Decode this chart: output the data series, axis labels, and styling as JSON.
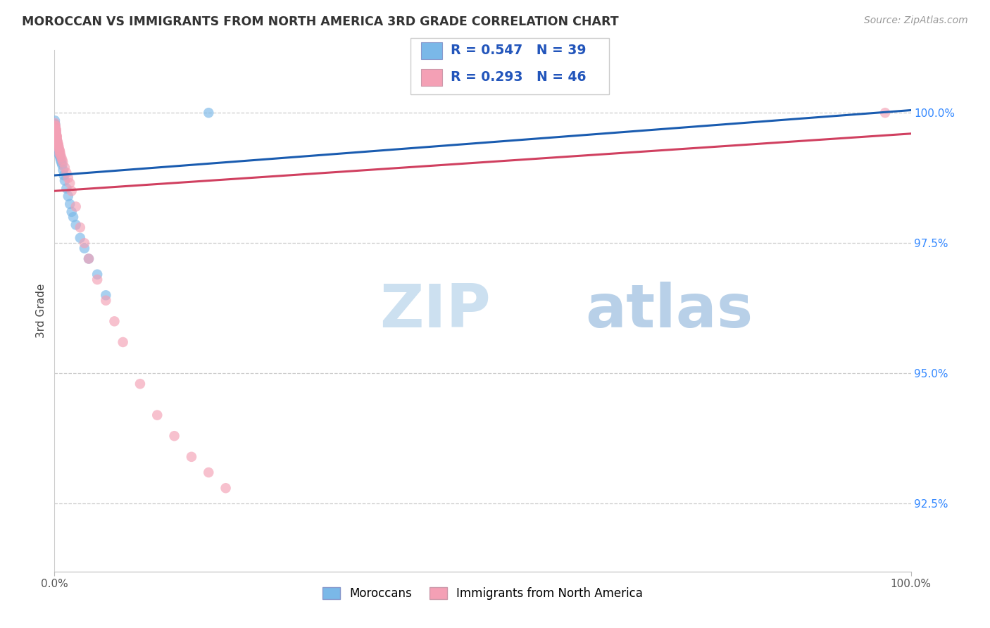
{
  "title": "MOROCCAN VS IMMIGRANTS FROM NORTH AMERICA 3RD GRADE CORRELATION CHART",
  "source": "Source: ZipAtlas.com",
  "ylabel": "3rd Grade",
  "yaxis_values": [
    100.0,
    97.5,
    95.0,
    92.5
  ],
  "xmin": 0.0,
  "xmax": 100.0,
  "ymin": 91.2,
  "ymax": 101.2,
  "legend1_label": "Moroccans",
  "legend2_label": "Immigrants from North America",
  "R1": 0.547,
  "N1": 39,
  "R2": 0.293,
  "N2": 46,
  "color_blue": "#7ab8e8",
  "color_pink": "#f4a0b5",
  "color_blue_line": "#1a5cb0",
  "color_pink_line": "#d04060",
  "color_title": "#333333",
  "color_stat": "#2255bb",
  "color_yaxis": "#3388ff",
  "watermark_zip": "#cce0f0",
  "watermark_atlas": "#b8d0e8",
  "blue_x": [
    0.05,
    0.08,
    0.1,
    0.12,
    0.15,
    0.18,
    0.2,
    0.22,
    0.25,
    0.28,
    0.3,
    0.32,
    0.35,
    0.38,
    0.4,
    0.42,
    0.45,
    0.5,
    0.55,
    0.6,
    0.65,
    0.7,
    0.8,
    0.9,
    1.0,
    1.1,
    1.2,
    1.4,
    1.6,
    1.8,
    2.0,
    2.2,
    2.5,
    3.0,
    3.5,
    4.0,
    5.0,
    6.0,
    18.0
  ],
  "blue_y": [
    99.85,
    99.78,
    99.72,
    99.68,
    99.65,
    99.6,
    99.55,
    99.5,
    99.48,
    99.45,
    99.42,
    99.4,
    99.38,
    99.35,
    99.32,
    99.3,
    99.28,
    99.25,
    99.2,
    99.18,
    99.15,
    99.1,
    99.05,
    99.0,
    98.9,
    98.8,
    98.7,
    98.55,
    98.4,
    98.25,
    98.1,
    98.0,
    97.85,
    97.6,
    97.4,
    97.2,
    96.9,
    96.5,
    100.0
  ],
  "pink_x": [
    0.05,
    0.08,
    0.12,
    0.15,
    0.18,
    0.2,
    0.22,
    0.25,
    0.28,
    0.3,
    0.35,
    0.4,
    0.45,
    0.5,
    0.55,
    0.6,
    0.65,
    0.7,
    0.8,
    0.9,
    1.0,
    1.2,
    1.4,
    1.6,
    1.8,
    2.0,
    2.5,
    3.0,
    3.5,
    4.0,
    5.0,
    6.0,
    7.0,
    8.0,
    10.0,
    12.0,
    14.0,
    16.0,
    18.0,
    20.0,
    0.1,
    0.18,
    0.28,
    0.4,
    0.6,
    97.0
  ],
  "pink_y": [
    99.8,
    99.75,
    99.7,
    99.68,
    99.65,
    99.62,
    99.58,
    99.55,
    99.52,
    99.48,
    99.45,
    99.42,
    99.38,
    99.35,
    99.3,
    99.28,
    99.25,
    99.2,
    99.15,
    99.1,
    99.05,
    98.95,
    98.85,
    98.75,
    98.65,
    98.5,
    98.2,
    97.8,
    97.5,
    97.2,
    96.8,
    96.4,
    96.0,
    95.6,
    94.8,
    94.2,
    93.8,
    93.4,
    93.1,
    92.8,
    99.75,
    99.68,
    99.55,
    99.4,
    99.22,
    100.0
  ],
  "blue_line_x0": 0.0,
  "blue_line_x1": 100.0,
  "blue_line_y0": 98.8,
  "blue_line_y1": 100.05,
  "pink_line_x0": 0.0,
  "pink_line_x1": 100.0,
  "pink_line_y0": 98.5,
  "pink_line_y1": 99.6
}
